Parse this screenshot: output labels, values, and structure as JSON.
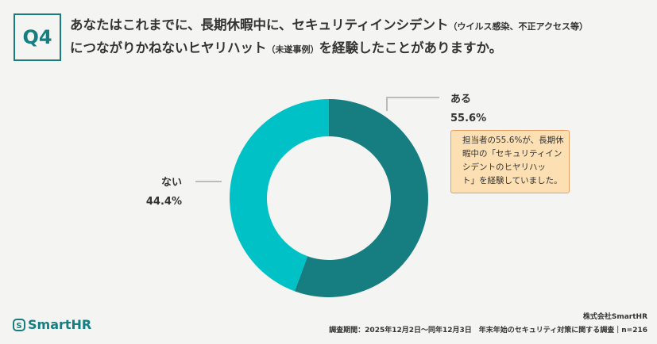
{
  "header": {
    "badge": "Q4",
    "title_line1": "あなたはこれまでに、長期休暇中に、セキュリティインシデント",
    "title_note1": "（ウイルス感染、不正アクセス等）",
    "title_line2a": "につながりかねないヒヤリハット",
    "title_note2": "（未遂事例）",
    "title_line2b": "を経験したことがありますか。"
  },
  "chart_data": {
    "type": "donut",
    "categories": [
      "ある",
      "ない"
    ],
    "values": [
      55.6,
      44.4
    ],
    "value_labels": [
      "55.6%",
      "44.4%"
    ],
    "colors": [
      "#167e80",
      "#00c2c6"
    ],
    "annotation": [
      "担当者の55.6%が、長期休",
      "暇中の「セキュリティイン",
      "シデントのヒヤリハッ",
      "ト」を経験していました。"
    ]
  },
  "footer": {
    "logo": "SmartHR",
    "company": "株式会社SmartHR",
    "survey": "調査期間：2025年12月2日～同年12月3日　年末年始のセキュリティ対策に関する調査｜n=216"
  }
}
